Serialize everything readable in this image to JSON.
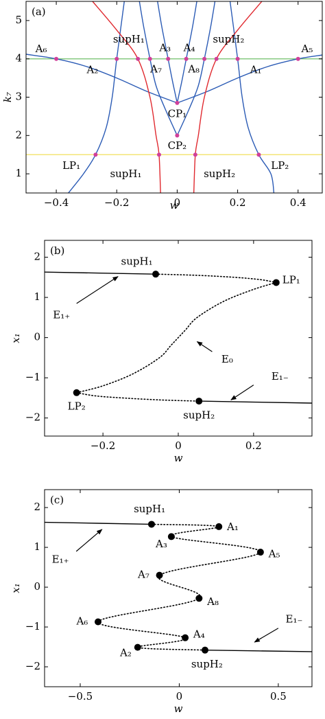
{
  "chart_data": [
    {
      "type": "line",
      "panel_label": "(a)",
      "xlabel": "w",
      "ylabel": "k₇",
      "xlim": [
        -0.5,
        0.48
      ],
      "ylim": [
        0.5,
        5.5
      ],
      "xticks": [
        {
          "value": -0.4,
          "label": "−0.4"
        },
        {
          "value": -0.2,
          "label": "−0.2"
        },
        0,
        0.2,
        0.4
      ],
      "yticks": [
        1,
        2,
        3,
        4,
        5
      ],
      "series": [
        {
          "color": "#7cc576",
          "style": "solid",
          "x": [
            -0.5,
            0.48
          ],
          "y": [
            4,
            4
          ]
        },
        {
          "color": "#f2e36a",
          "style": "solid",
          "x": [
            -0.5,
            0.48
          ],
          "y": [
            1.5,
            1.5
          ]
        },
        {
          "color": "#2b5bb5",
          "style": "solid",
          "x": [
            -0.5,
            -0.4,
            -0.3,
            -0.2,
            -0.1,
            0
          ],
          "y": [
            4.12,
            4.0,
            3.8,
            3.5,
            3.15,
            2.85
          ]
        },
        {
          "color": "#2b5bb5",
          "style": "solid",
          "x": [
            0,
            0.1,
            0.2,
            0.3,
            0.4,
            0.48
          ],
          "y": [
            2.85,
            3.15,
            3.5,
            3.8,
            4.0,
            4.1
          ]
        },
        {
          "color": "#2b5bb5",
          "style": "solid",
          "x": [
            0,
            -0.015,
            -0.03,
            -0.05,
            -0.065
          ],
          "y": [
            2.85,
            3.4,
            4.0,
            4.8,
            5.5
          ]
        },
        {
          "color": "#2b5bb5",
          "style": "solid",
          "x": [
            0,
            0.015,
            0.03,
            0.05,
            0.065
          ],
          "y": [
            2.85,
            3.4,
            4.0,
            4.8,
            5.5
          ]
        },
        {
          "color": "#2b5bb5",
          "style": "solid",
          "x": [
            0,
            -0.04,
            -0.07,
            -0.09,
            -0.11,
            -0.125
          ],
          "y": [
            2.0,
            2.7,
            3.3,
            4.0,
            4.8,
            5.5
          ]
        },
        {
          "color": "#2b5bb5",
          "style": "solid",
          "x": [
            0,
            0.04,
            0.07,
            0.09,
            0.11,
            0.125
          ],
          "y": [
            2.0,
            2.7,
            3.3,
            4.0,
            4.8,
            5.5
          ]
        },
        {
          "color": "#2b5bb5",
          "style": "solid",
          "x": [
            -0.175,
            -0.2,
            -0.215,
            -0.235,
            -0.27,
            -0.31,
            -0.36
          ],
          "y": [
            5.5,
            4.0,
            3.0,
            2.2,
            1.5,
            1.0,
            0.5
          ]
        },
        {
          "color": "#2b5bb5",
          "style": "solid",
          "x": [
            0.175,
            0.2,
            0.215,
            0.235,
            0.27,
            0.31,
            0.32
          ],
          "y": [
            5.5,
            4.0,
            3.0,
            2.2,
            1.5,
            1.0,
            0.5
          ]
        },
        {
          "color": "#e0282e",
          "style": "solid",
          "x": [
            -0.28,
            -0.2,
            -0.13,
            -0.09,
            -0.07,
            -0.06,
            -0.055
          ],
          "y": [
            5.5,
            4.75,
            4.0,
            3.0,
            2.0,
            1.5,
            0.5
          ]
        },
        {
          "color": "#e0282e",
          "style": "solid",
          "x": [
            0.28,
            0.2,
            0.13,
            0.09,
            0.07,
            0.06,
            0.055
          ],
          "y": [
            5.5,
            4.75,
            4.0,
            3.0,
            2.0,
            1.5,
            0.5
          ]
        },
        {
          "color": "#d0409a",
          "mode": "markers",
          "x": [
            -0.4,
            -0.2,
            -0.13,
            -0.09,
            -0.03,
            0.03,
            0.09,
            0.13,
            0.2,
            0.4,
            0,
            0,
            -0.27,
            -0.06,
            0.06,
            0.27
          ],
          "y": [
            4,
            4,
            4,
            4,
            4,
            4,
            4,
            4,
            4,
            4,
            2.85,
            2.0,
            1.5,
            1.5,
            1.5,
            1.5
          ]
        }
      ],
      "annotations": [
        "A₆",
        "supH₁",
        "A₃",
        "A₄",
        "supH₂",
        "A₅",
        "A₂",
        "A₇",
        "A₈",
        "A₁",
        "CP₁",
        "CP₂",
        "LP₁",
        "supH₁",
        "supH₂",
        "LP₂"
      ]
    },
    {
      "type": "line",
      "panel_label": "(b)",
      "xlabel": "w",
      "ylabel": "x₁",
      "xlim": [
        -0.355,
        0.355
      ],
      "ylim": [
        -2.45,
        2.42
      ],
      "xticks": [
        {
          "value": -0.2,
          "label": "−0.2"
        },
        0,
        0.2
      ],
      "yticks": [
        {
          "value": -2,
          "label": "−2"
        },
        {
          "value": -1,
          "label": "−1"
        },
        0,
        1,
        2
      ],
      "series": [
        {
          "color": "#000000",
          "style": "solid",
          "x": [
            -0.355,
            -0.06
          ],
          "y": [
            1.63,
            1.58
          ]
        },
        {
          "color": "#000000",
          "style": "dotted",
          "x": [
            -0.06,
            0.05,
            0.15,
            0.22,
            0.26
          ],
          "y": [
            1.58,
            1.55,
            1.5,
            1.44,
            1.37
          ]
        },
        {
          "color": "#000000",
          "style": "dotted",
          "x": [
            0.26,
            0.2,
            0.12,
            0.05,
            0.02,
            0,
            -0.02,
            -0.05,
            -0.12,
            -0.2,
            -0.27
          ],
          "y": [
            1.37,
            1.2,
            0.9,
            0.5,
            0.2,
            0,
            -0.2,
            -0.5,
            -0.9,
            -1.2,
            -1.37
          ]
        },
        {
          "color": "#000000",
          "style": "dotted",
          "x": [
            -0.27,
            -0.22,
            -0.15,
            -0.05,
            0.055
          ],
          "y": [
            -1.37,
            -1.45,
            -1.5,
            -1.55,
            -1.58
          ]
        },
        {
          "color": "#000000",
          "style": "solid",
          "x": [
            0.055,
            0.355
          ],
          "y": [
            -1.58,
            -1.63
          ]
        },
        {
          "color": "#000000",
          "mode": "markers",
          "x": [
            -0.06,
            0.26,
            -0.27,
            0.055
          ],
          "y": [
            1.58,
            1.37,
            -1.37,
            -1.58
          ]
        }
      ],
      "annotations": [
        "supH₁",
        "LP₁",
        "E₁₊",
        "E₀",
        "E₁₋",
        "LP₂",
        "supH₂"
      ]
    },
    {
      "type": "line",
      "panel_label": "(c)",
      "xlabel": "w",
      "ylabel": "x₁",
      "xlim": [
        -0.68,
        0.67
      ],
      "ylim": [
        -2.5,
        2.45
      ],
      "xticks": [
        {
          "value": -0.5,
          "label": "−0.5"
        },
        0,
        0.5
      ],
      "yticks": [
        {
          "value": -2,
          "label": "−2"
        },
        {
          "value": -1,
          "label": "−1"
        },
        0,
        1,
        2
      ],
      "series": [
        {
          "color": "#000000",
          "style": "solid",
          "x": [
            -0.68,
            -0.14
          ],
          "y": [
            1.63,
            1.58
          ]
        },
        {
          "color": "#000000",
          "style": "dotted",
          "x": [
            -0.14,
            0.2,
            -0.04,
            0.41,
            -0.1,
            0.1,
            -0.41,
            0.03,
            -0.21,
            0.13
          ],
          "y": [
            1.58,
            1.52,
            1.27,
            0.88,
            0.3,
            -0.28,
            -0.87,
            -1.27,
            -1.51,
            -1.58
          ]
        },
        {
          "color": "#000000",
          "style": "solid",
          "x": [
            0.13,
            0.67
          ],
          "y": [
            -1.58,
            -1.62
          ]
        },
        {
          "color": "#000000",
          "mode": "markers",
          "x": [
            -0.14,
            0.2,
            -0.04,
            0.41,
            -0.1,
            0.1,
            -0.41,
            0.03,
            -0.21,
            0.13
          ],
          "y": [
            1.58,
            1.52,
            1.27,
            0.88,
            0.3,
            -0.28,
            -0.87,
            -1.27,
            -1.51,
            -1.58
          ]
        }
      ],
      "annotations": [
        "supH₁",
        "A₁",
        "A₃",
        "A₅",
        "A₇",
        "A₈",
        "A₆",
        "A₄",
        "A₂",
        "supH₂",
        "E₁₊",
        "E₁₋"
      ]
    }
  ]
}
